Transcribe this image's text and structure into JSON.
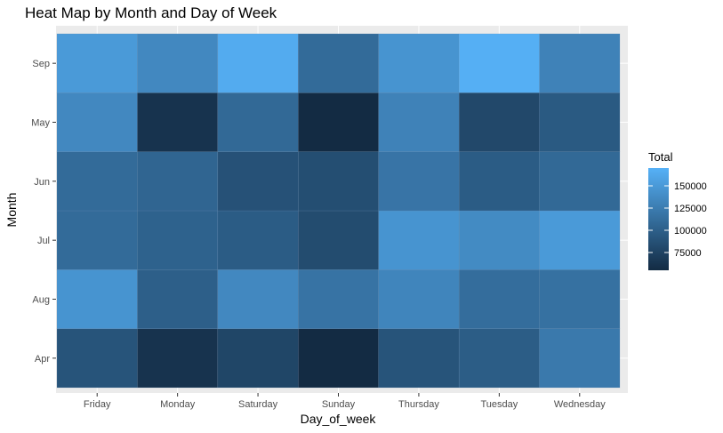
{
  "chart_data": {
    "type": "heatmap",
    "title": "Heat Map by Month and Day of Week",
    "xlabel": "Day_of_week",
    "ylabel": "Month",
    "x_categories": [
      "Friday",
      "Monday",
      "Saturday",
      "Sunday",
      "Thursday",
      "Tuesday",
      "Wednesday"
    ],
    "y_categories": [
      "Apr",
      "Aug",
      "Jul",
      "Jun",
      "May",
      "Sep"
    ],
    "values": [
      [
        90000,
        62000,
        78000,
        55000,
        90000,
        98000,
        122000
      ],
      [
        145000,
        100000,
        135000,
        117000,
        132000,
        112000,
        115000
      ],
      [
        110000,
        102000,
        97000,
        83000,
        145000,
        137000,
        150000
      ],
      [
        110000,
        105000,
        88000,
        85000,
        118000,
        97000,
        108000
      ],
      [
        135000,
        62000,
        108000,
        55000,
        130000,
        80000,
        95000
      ],
      [
        150000,
        135000,
        165000,
        110000,
        145000,
        168000,
        130000
      ]
    ],
    "fill_scale": {
      "low_value": 55000,
      "high_value": 170000,
      "low_color": "#132B43",
      "high_color": "#56B1F7"
    },
    "legend": {
      "title": "Total",
      "breaks": [
        75000,
        100000,
        125000,
        150000
      ],
      "labels": [
        "75000",
        "100000",
        "125000",
        "150000"
      ],
      "position": "right"
    },
    "grid": true,
    "panel_background": "#EBEBEB"
  }
}
